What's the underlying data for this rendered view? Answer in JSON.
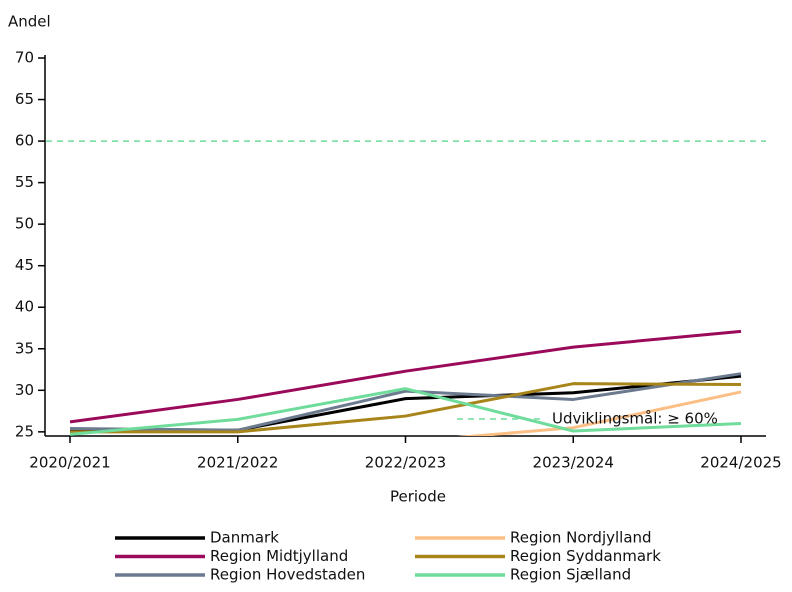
{
  "chart_data": {
    "type": "line",
    "y_label": "Andel",
    "x_label": "Periode",
    "categories": [
      "2020/2021",
      "2021/2022",
      "2022/2023",
      "2023/2024",
      "2024/2025"
    ],
    "ylim": [
      24.5,
      70
    ],
    "yticks": [
      25,
      30,
      35,
      40,
      45,
      50,
      55,
      60,
      65,
      70
    ],
    "target": {
      "value": 60,
      "label": "Udviklingsmål: ≥ 60%",
      "color": "#6fdc9c"
    },
    "series": [
      {
        "name": "Danmark",
        "color": "#000000",
        "values": [
          25.3,
          25.2,
          29.0,
          29.7,
          31.7
        ]
      },
      {
        "name": "Region Midtjylland",
        "color": "#9b0a5a",
        "values": [
          26.2,
          28.9,
          32.3,
          35.2,
          37.1
        ]
      },
      {
        "name": "Region Hovedstaden",
        "color": "#6b7a8f",
        "values": [
          25.4,
          25.2,
          29.9,
          28.9,
          32.0
        ]
      },
      {
        "name": "Region Nordjylland",
        "color": "#fbbf85",
        "values": [
          null,
          null,
          23.8,
          25.5,
          29.8
        ]
      },
      {
        "name": "Region Syddanmark",
        "color": "#a8851a",
        "values": [
          25.0,
          25.0,
          26.9,
          30.8,
          30.7
        ]
      },
      {
        "name": "Region Sjælland",
        "color": "#6fdc9c",
        "values": [
          24.7,
          26.5,
          30.2,
          25.1,
          26.0
        ]
      }
    ]
  }
}
